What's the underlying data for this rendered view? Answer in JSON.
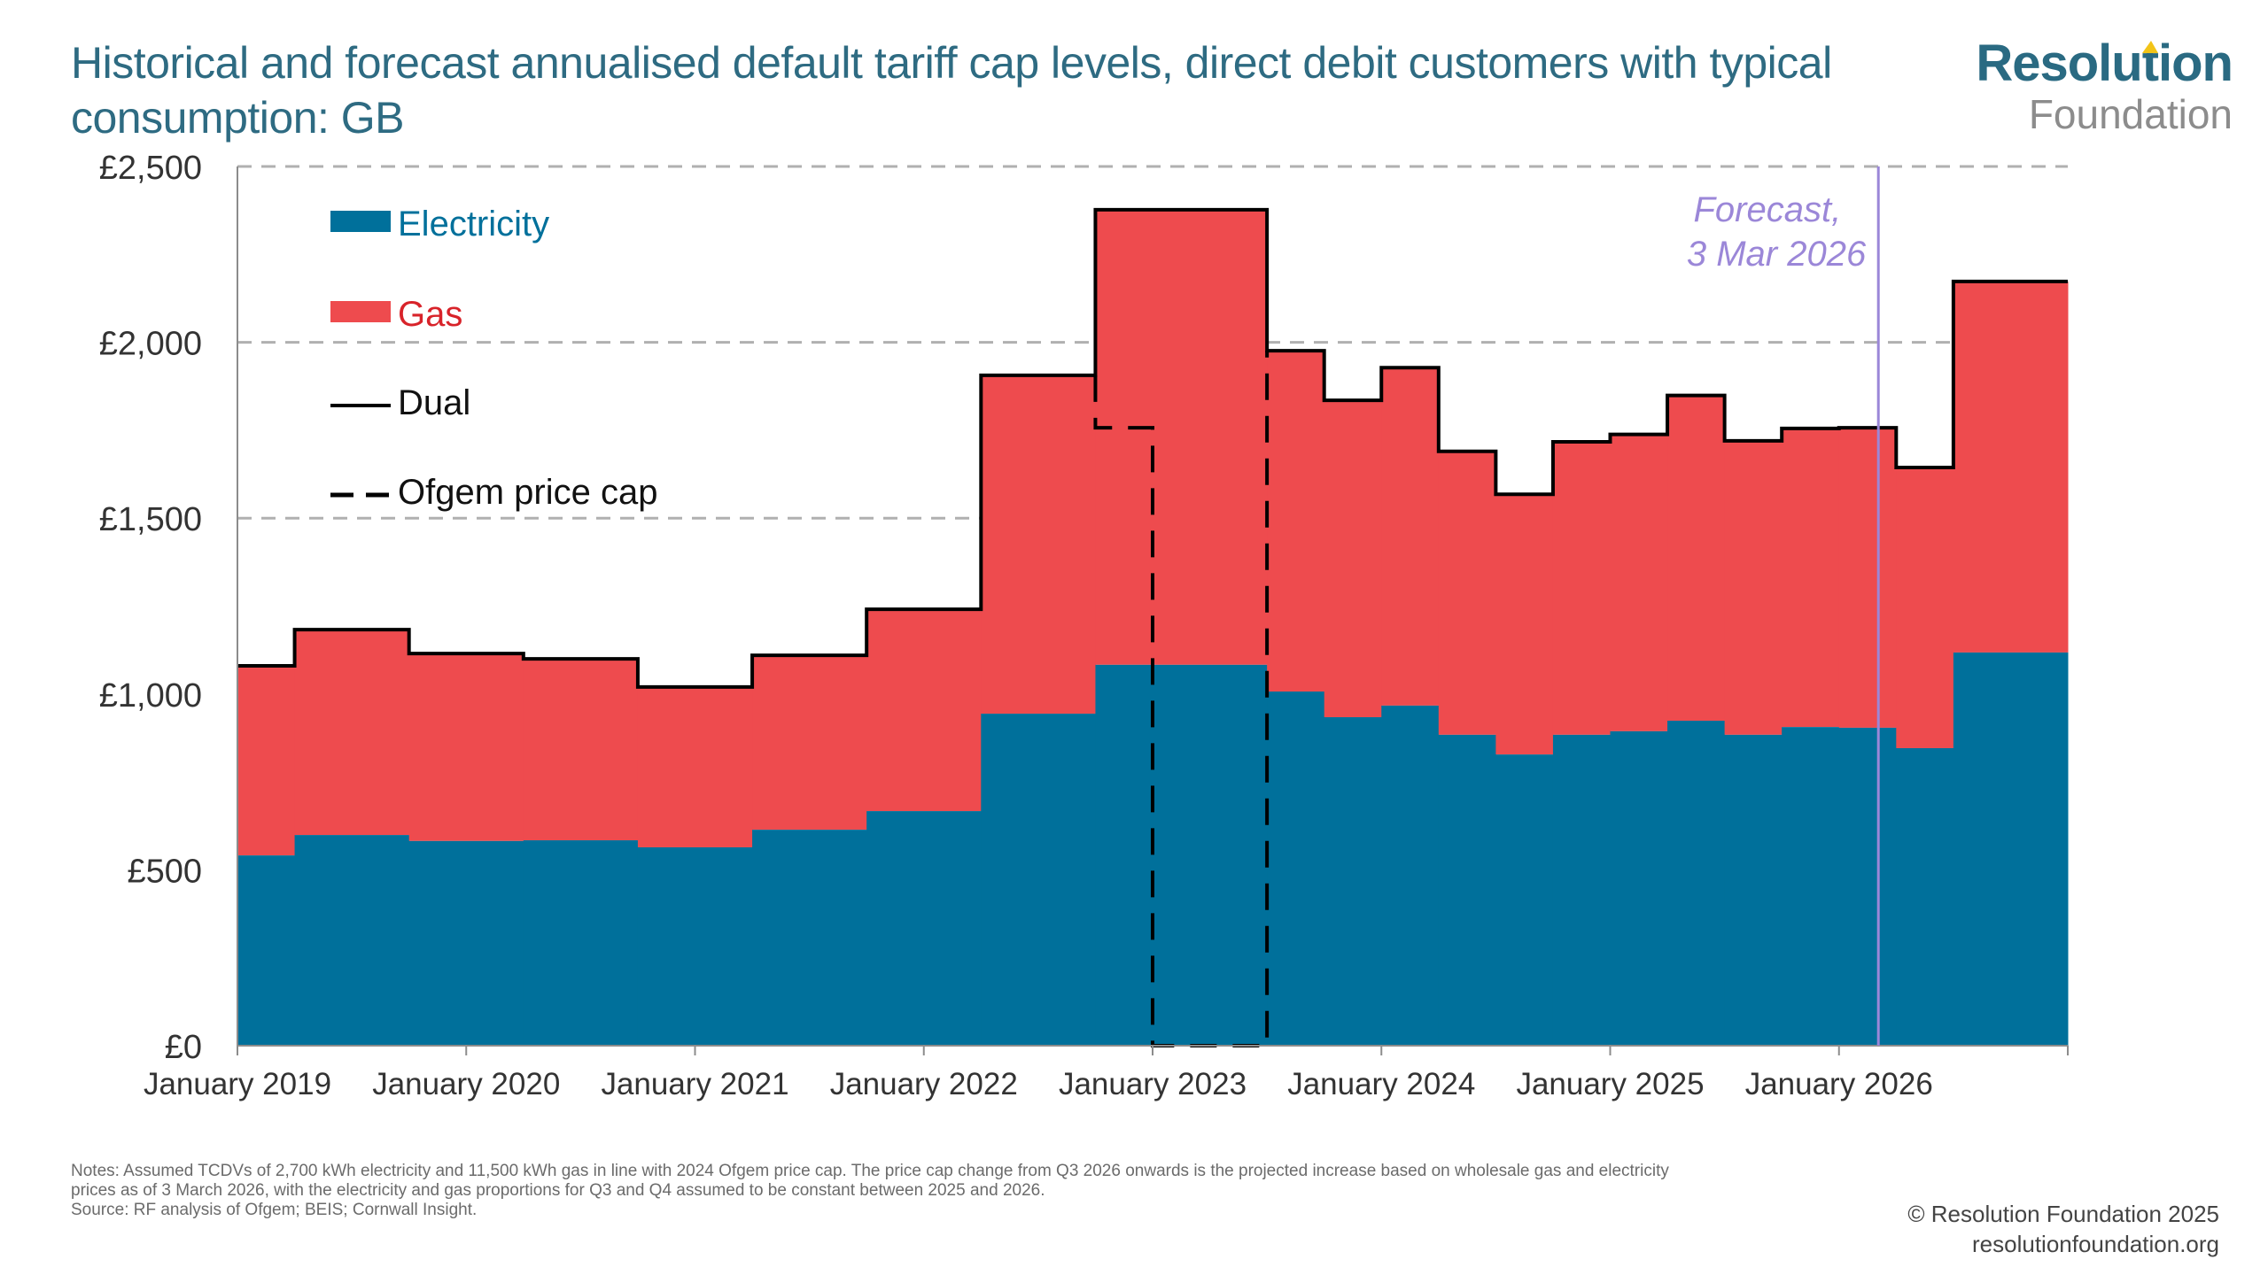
{
  "title": "Historical and forecast annualised default tariff cap levels, direct debit customers with typical consumption: GB",
  "logo": {
    "main": "Resolution",
    "sub": "Foundation"
  },
  "notes": [
    "Notes: Assumed TCDVs of 2,700 kWh electricity and 11,500 kWh gas in line with 2024 Ofgem price cap. The price cap change from Q3 2026 onwards is the projected increase based on wholesale gas and electricity",
    "prices as of 3 March 2026, with the electricity and gas proportions for Q3 and Q4 assumed to be constant between 2025 and 2026.",
    "Source: RF analysis of Ofgem; BEIS; Cornwall Insight."
  ],
  "credit": {
    "line1": "© Resolution Foundation 2025",
    "line2": "resolutionfoundation.org"
  },
  "chart_data": {
    "type": "area",
    "subtype": "stacked-step",
    "title": "Historical and forecast annualised default tariff cap levels, direct debit customers with typical consumption: GB",
    "xlabel": "",
    "ylabel": "",
    "ylim": [
      0,
      2500
    ],
    "xlim": [
      "2019-01",
      "2027-01"
    ],
    "yticks": [
      0,
      500,
      1000,
      1500,
      2000,
      2500
    ],
    "ytick_labels": [
      "£0",
      "£500",
      "£1,000",
      "£1,500",
      "£2,000",
      "£2,500"
    ],
    "xticks": [
      "2019-01",
      "2020-01",
      "2021-01",
      "2022-01",
      "2023-01",
      "2024-01",
      "2025-01",
      "2026-01",
      "2027-01"
    ],
    "xtick_labels": [
      "January 2019",
      "January 2020",
      "January 2021",
      "January 2022",
      "January 2023",
      "January 2024",
      "January 2025",
      "January 2026",
      ""
    ],
    "grid": "horizontal-dashed",
    "legend_position": "top-left",
    "colors": {
      "electricity": "#00709b",
      "gas": "#ee4b4e",
      "dual": "#000000",
      "ofgem": "#000000",
      "forecast": "#9b87d8",
      "grid": "#b0b0b0",
      "title": "#2e6b82"
    },
    "legend": [
      {
        "key": "electricity",
        "label": "Electricity",
        "kind": "swatch"
      },
      {
        "key": "gas",
        "label": "Gas",
        "kind": "swatch"
      },
      {
        "key": "dual",
        "label": "Dual",
        "kind": "line"
      },
      {
        "key": "ofgem",
        "label": "Ofgem price cap",
        "kind": "dashed"
      }
    ],
    "periods": [
      {
        "start": "2019-01",
        "end": "2019-04",
        "dual": 1080,
        "electricity": 541
      },
      {
        "start": "2019-04",
        "end": "2019-10",
        "dual": 1183,
        "electricity": 599
      },
      {
        "start": "2019-10",
        "end": "2020-04",
        "dual": 1115,
        "electricity": 582
      },
      {
        "start": "2020-04",
        "end": "2020-10",
        "dual": 1100,
        "electricity": 584
      },
      {
        "start": "2020-10",
        "end": "2021-04",
        "dual": 1020,
        "electricity": 564
      },
      {
        "start": "2021-04",
        "end": "2021-10",
        "dual": 1110,
        "electricity": 614
      },
      {
        "start": "2021-10",
        "end": "2022-04",
        "dual": 1241,
        "electricity": 667
      },
      {
        "start": "2022-04",
        "end": "2022-10",
        "dual": 1906,
        "electricity": 944
      },
      {
        "start": "2022-10",
        "end": "2023-07",
        "dual": 2377,
        "electricity": 1083
      },
      {
        "start": "2023-07",
        "end": "2023-10",
        "dual": 1976,
        "electricity": 1007
      },
      {
        "start": "2023-10",
        "end": "2024-01",
        "dual": 1835,
        "electricity": 934
      },
      {
        "start": "2024-01",
        "end": "2024-04",
        "dual": 1928,
        "electricity": 967
      },
      {
        "start": "2024-04",
        "end": "2024-07",
        "dual": 1690,
        "electricity": 884
      },
      {
        "start": "2024-07",
        "end": "2024-10",
        "dual": 1568,
        "electricity": 828
      },
      {
        "start": "2024-10",
        "end": "2025-01",
        "dual": 1717,
        "electricity": 884
      },
      {
        "start": "2025-01",
        "end": "2025-04",
        "dual": 1738,
        "electricity": 894
      },
      {
        "start": "2025-04",
        "end": "2025-07",
        "dual": 1849,
        "electricity": 924
      },
      {
        "start": "2025-07",
        "end": "2025-10",
        "dual": 1720,
        "electricity": 884
      },
      {
        "start": "2025-10",
        "end": "2026-01",
        "dual": 1755,
        "electricity": 906
      },
      {
        "start": "2026-01",
        "end": "2026-04",
        "dual": 1757,
        "electricity": 904
      },
      {
        "start": "2026-04",
        "end": "2026-07",
        "dual": 1644,
        "electricity": 846
      },
      {
        "start": "2026-07",
        "end": "2027-01",
        "dual": 2173,
        "electricity": 1118
      }
    ],
    "ofgem_price_cap": [
      {
        "date": "2022-10",
        "value": 1906
      },
      {
        "date": "2022-10",
        "value": 1757
      },
      {
        "date": "2023-01",
        "value": 1757
      },
      {
        "date": "2023-01",
        "value": 0
      },
      {
        "date": "2023-07",
        "value": 0
      },
      {
        "date": "2023-07",
        "value": 1976
      }
    ],
    "forecast_marker": {
      "date": "2026-03-03",
      "label_line1": "Forecast,",
      "label_line2": "3 Mar 2026"
    }
  }
}
